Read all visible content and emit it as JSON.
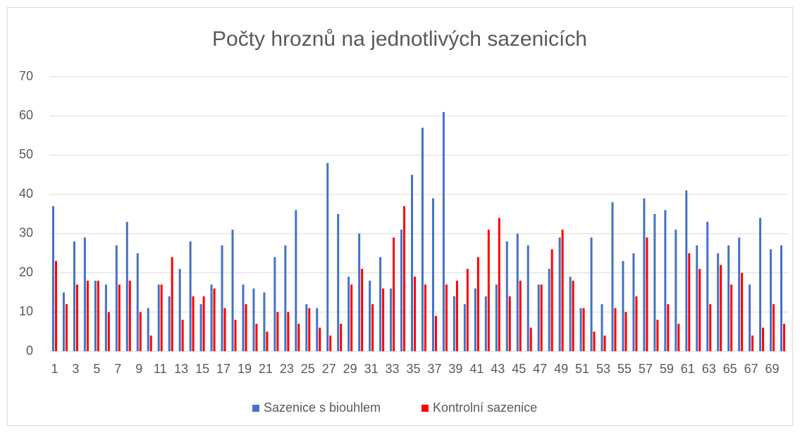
{
  "chart_data": {
    "type": "bar",
    "title": "Počty hroznů na jednotlivých sazenicích",
    "categories": [
      1,
      null,
      3,
      null,
      5,
      null,
      7,
      null,
      9,
      null,
      11,
      null,
      13,
      null,
      15,
      null,
      17,
      null,
      19,
      null,
      21,
      null,
      23,
      null,
      25,
      null,
      27,
      null,
      29,
      null,
      31,
      null,
      33,
      null,
      35,
      null,
      37,
      null,
      39,
      null,
      41,
      null,
      43,
      null,
      45,
      null,
      47,
      null,
      49,
      null,
      51,
      null,
      53,
      null,
      55,
      null,
      57,
      null,
      59,
      null,
      61,
      null,
      63,
      null,
      65,
      null,
      67,
      null,
      69,
      null
    ],
    "series": [
      {
        "name": "Sazenice s biouhlem",
        "color": "#4472c4",
        "values": [
          37,
          15,
          28,
          29,
          18,
          17,
          27,
          33,
          25,
          11,
          17,
          14,
          21,
          28,
          12,
          17,
          27,
          31,
          17,
          16,
          15,
          24,
          27,
          36,
          12,
          11,
          48,
          35,
          19,
          30,
          18,
          24,
          16,
          31,
          45,
          57,
          39,
          61,
          14,
          12,
          16,
          14,
          17,
          28,
          30,
          27,
          17,
          21,
          29,
          19,
          11,
          29,
          12,
          38,
          23,
          25,
          39,
          35,
          36,
          31,
          41,
          27,
          33,
          25,
          27,
          29,
          17,
          34,
          26,
          27
        ]
      },
      {
        "name": "Kontrolní sazenice",
        "color": "#ff0000",
        "values": [
          23,
          12,
          17,
          18,
          18,
          10,
          17,
          18,
          10,
          4,
          17,
          24,
          8,
          14,
          14,
          16,
          11,
          8,
          12,
          7,
          5,
          10,
          10,
          7,
          11,
          6,
          4,
          7,
          17,
          21,
          12,
          16,
          29,
          37,
          19,
          17,
          9,
          17,
          18,
          21,
          24,
          31,
          34,
          14,
          18,
          6,
          17,
          26,
          31,
          18,
          11,
          5,
          4,
          11,
          10,
          14,
          29,
          8,
          12,
          7,
          25,
          21,
          12,
          22,
          17,
          20,
          4,
          6,
          12,
          7
        ]
      }
    ],
    "ylim": [
      0,
      70
    ],
    "yticks": [
      0,
      10,
      20,
      30,
      40,
      50,
      60,
      70
    ],
    "grid": true,
    "legend": "bottom"
  }
}
